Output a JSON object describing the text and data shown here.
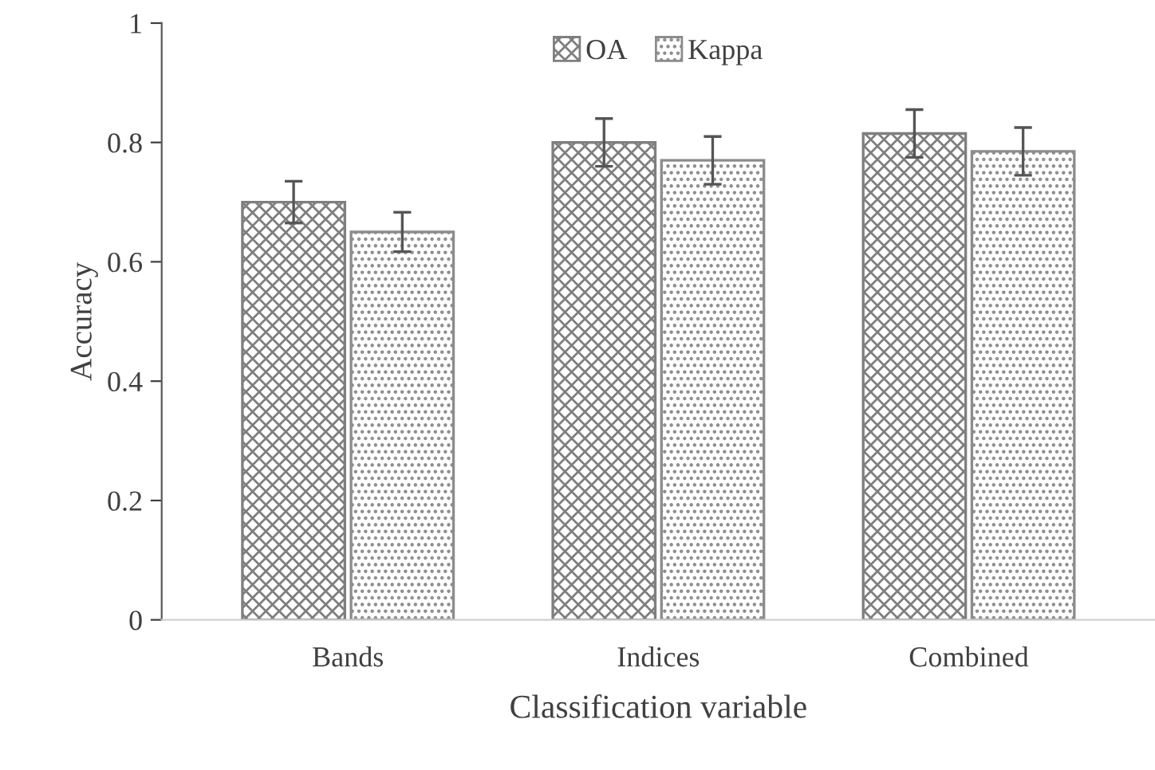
{
  "chart_data": {
    "type": "bar",
    "xlabel": "Classification variable",
    "ylabel": "Accuracy",
    "categories": [
      "Bands",
      "Indices",
      "Combined"
    ],
    "series": [
      {
        "name": "OA",
        "color": "#7f7f7f",
        "values": [
          0.7,
          0.8,
          0.815
        ],
        "errors": [
          0.035,
          0.04,
          0.04
        ]
      },
      {
        "name": "Kappa",
        "color": "#8c8c8c",
        "values": [
          0.65,
          0.77,
          0.785
        ],
        "errors": [
          0.033,
          0.04,
          0.04
        ]
      }
    ],
    "ylim": [
      0,
      1
    ],
    "yticks": [
      0,
      0.2,
      0.4,
      0.6,
      0.8,
      1
    ],
    "grid": false,
    "legend": "top"
  }
}
